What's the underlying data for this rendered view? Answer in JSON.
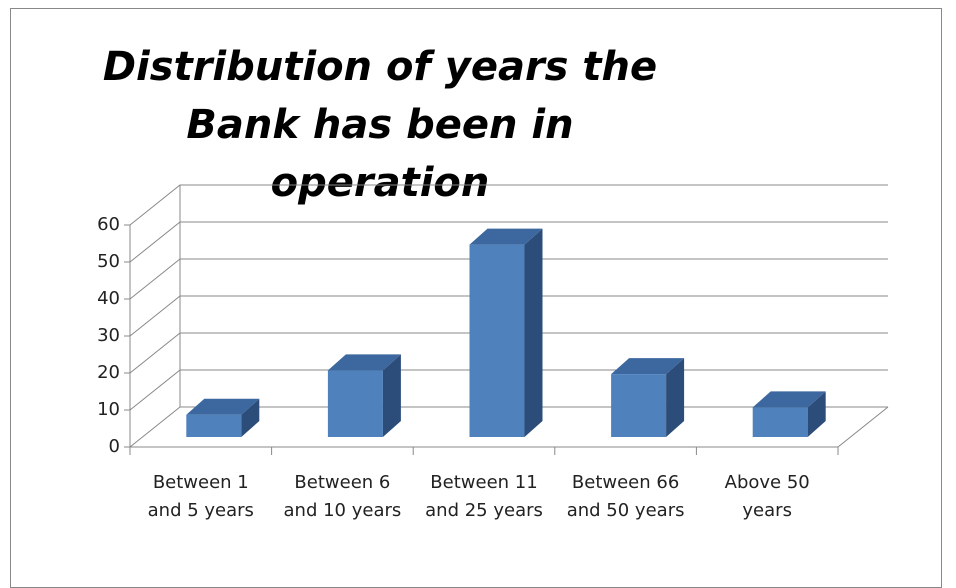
{
  "chart_data": {
    "type": "bar3d",
    "title": "Distribution of years the Bank has been in operation",
    "categories": [
      "Between 1 and 5 years",
      "Between 6 and 10 years",
      "Between 11 and 25 years",
      "Between 66 and 50 years",
      "Above 50 years"
    ],
    "values": [
      6,
      18,
      52,
      17,
      8
    ],
    "color": "#4f81bd",
    "ylim": [
      0,
      60
    ],
    "yticks": [
      0,
      10,
      20,
      30,
      40,
      50,
      60
    ],
    "grid": true
  }
}
